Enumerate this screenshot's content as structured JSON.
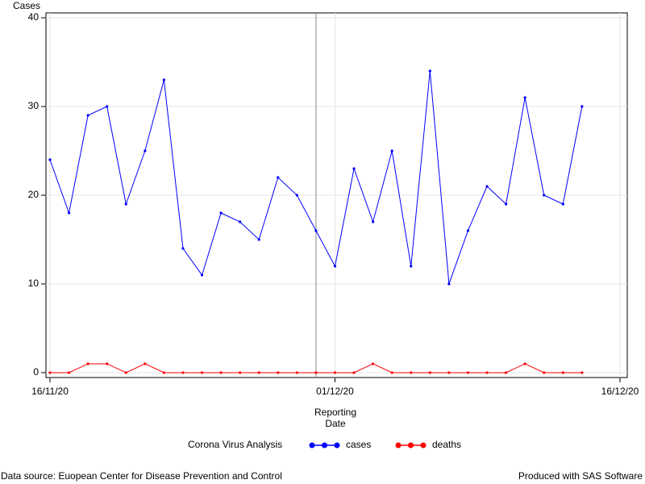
{
  "chart_data": {
    "type": "line",
    "y_label": "Cases",
    "x_label": "Reporting Date",
    "legend_title": "Corona Virus Analysis",
    "footnote_left": "Data source: Euopean Center for Disease Prevention and Control",
    "footnote_right": "Produced with SAS Software",
    "x": [
      "2020-11-16",
      "2020-11-17",
      "2020-11-18",
      "2020-11-19",
      "2020-11-20",
      "2020-11-21",
      "2020-11-22",
      "2020-11-23",
      "2020-11-24",
      "2020-11-25",
      "2020-11-26",
      "2020-11-27",
      "2020-11-28",
      "2020-11-29",
      "2020-11-30",
      "2020-12-01",
      "2020-12-02",
      "2020-12-03",
      "2020-12-04",
      "2020-12-05",
      "2020-12-06",
      "2020-12-07",
      "2020-12-08",
      "2020-12-09",
      "2020-12-10",
      "2020-12-11",
      "2020-12-12",
      "2020-12-13",
      "2020-12-14"
    ],
    "series": [
      {
        "name": "cases",
        "color": "#0000ff",
        "values": [
          24,
          18,
          29,
          30,
          19,
          25,
          33,
          14,
          11,
          18,
          17,
          15,
          22,
          20,
          16,
          12,
          23,
          17,
          25,
          12,
          34,
          10,
          16,
          21,
          19,
          31,
          20,
          19,
          30
        ]
      },
      {
        "name": "deaths",
        "color": "#ff0000",
        "values": [
          0,
          0,
          1,
          1,
          0,
          1,
          0,
          0,
          0,
          0,
          0,
          0,
          0,
          0,
          0,
          0,
          0,
          1,
          0,
          0,
          0,
          0,
          0,
          0,
          0,
          1,
          0,
          0,
          0
        ]
      }
    ],
    "xlim": [
      "2020-11-16",
      "2020-12-16"
    ],
    "xticks": [
      {
        "value": "2020-11-16",
        "label": "16/11/20"
      },
      {
        "value": "2020-12-01",
        "label": "01/12/20"
      },
      {
        "value": "2020-12-16",
        "label": "16/12/20"
      }
    ],
    "x_reference_line": "2020-11-30",
    "ylim": [
      -0.55,
      40.55
    ],
    "yticks": [
      0,
      10,
      20,
      30,
      40
    ],
    "grid": true
  }
}
